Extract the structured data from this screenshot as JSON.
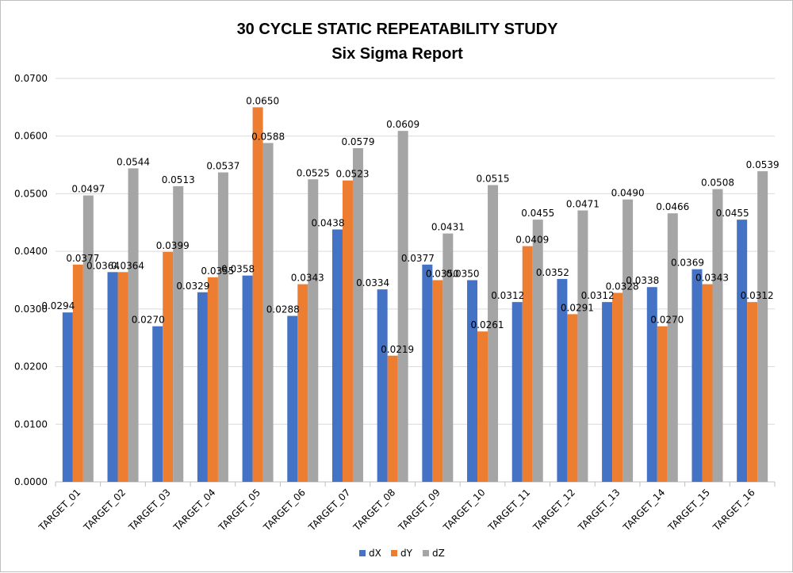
{
  "chart_data": {
    "type": "bar",
    "title": "30 CYCLE STATIC REPEATABILITY STUDY",
    "subtitle": "Six Sigma Report",
    "xlabel": "",
    "ylabel": "",
    "ylim": [
      0,
      0.07
    ],
    "yticks": [
      "0.0000",
      "0.0100",
      "0.0200",
      "0.0300",
      "0.0400",
      "0.0500",
      "0.0600",
      "0.0700"
    ],
    "grid": true,
    "legend_position": "bottom",
    "categories": [
      "TARGET_01",
      "TARGET_02",
      "TARGET_03",
      "TARGET_04",
      "TARGET_05",
      "TARGET_06",
      "TARGET_07",
      "TARGET_08",
      "TARGET_09",
      "TARGET_10",
      "TARGET_11",
      "TARGET_12",
      "TARGET_13",
      "TARGET_14",
      "TARGET_15",
      "TARGET_16"
    ],
    "series": [
      {
        "name": "dX",
        "color": "#4472C4",
        "values": [
          0.0294,
          0.0364,
          0.027,
          0.0329,
          0.0358,
          0.0288,
          0.0438,
          0.0334,
          0.0377,
          0.035,
          0.0312,
          0.0352,
          0.0312,
          0.0338,
          0.0369,
          0.0455
        ],
        "labels": [
          "0.0294",
          "0.0364",
          "0.0270",
          "0.0329",
          "0.0358",
          "0.0288",
          "0.0438",
          "0.0334",
          "0.0377",
          "0.0350",
          "0.0312",
          "0.0352",
          "0.0312",
          "0.0338",
          "0.0369",
          "0.0455"
        ]
      },
      {
        "name": "dY",
        "color": "#ED7D31",
        "values": [
          0.0377,
          0.0364,
          0.0399,
          0.0355,
          0.065,
          0.0343,
          0.0523,
          0.0219,
          0.035,
          0.0261,
          0.0409,
          0.0291,
          0.0328,
          0.027,
          0.0343,
          0.0312
        ],
        "labels": [
          "0.0377",
          "0.0364",
          "0.0399",
          "0.0355",
          "0.0650",
          "0.0343",
          "0.0523",
          "0.0219",
          "0.0350",
          "0.0261",
          "0.0409",
          "0.0291",
          "0.0328",
          "0.0270",
          "0.0343",
          "0.0312"
        ]
      },
      {
        "name": "dZ",
        "color": "#A5A5A5",
        "values": [
          0.0497,
          0.0544,
          0.0513,
          0.0537,
          0.0588,
          0.0525,
          0.0579,
          0.0609,
          0.0431,
          0.0515,
          0.0455,
          0.0471,
          0.049,
          0.0466,
          0.0508,
          0.0539
        ],
        "labels": [
          "0.0497",
          "0.0544",
          "0.0513",
          "0.0537",
          "0.0588",
          "0.0525",
          "0.0579",
          "0.0609",
          "0.0431",
          "0.0515",
          "0.0455",
          "0.0471",
          "0.0490",
          "0.0466",
          "0.0508",
          "0.0539"
        ]
      }
    ]
  }
}
